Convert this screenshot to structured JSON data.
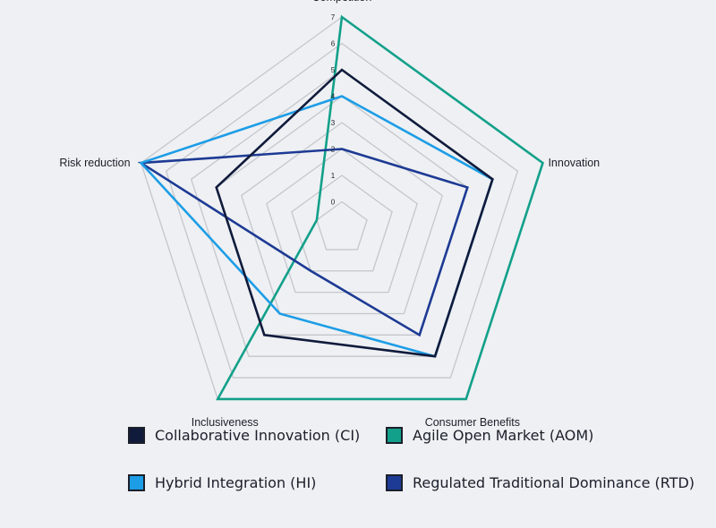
{
  "chart_data": {
    "type": "radar",
    "axes": [
      "Competition",
      "Innovation",
      "Consumer Benefits",
      "Inclusiveness",
      "Risk reduction"
    ],
    "ticks": [
      "0",
      "1",
      "2",
      "3",
      "4",
      "5",
      "6",
      "7"
    ],
    "range": [
      0,
      7
    ],
    "grid": true,
    "legend_position": "bottom",
    "series": [
      {
        "name": "Collaborative Innovation (CI)",
        "color": "#101b3c",
        "values": [
          5,
          5,
          5,
          4,
          4
        ]
      },
      {
        "name": "Agile Open Market (AOM)",
        "color": "#12a08a",
        "values": [
          7,
          7,
          7,
          7,
          0
        ]
      },
      {
        "name": "Hybrid Integration (HI)",
        "color": "#1d9de6",
        "values": [
          4,
          5,
          5,
          3,
          7
        ]
      },
      {
        "name": "Regulated Traditional Dominance (RTD)",
        "color": "#1d3a94",
        "values": [
          2,
          4,
          4,
          1,
          7
        ]
      }
    ]
  }
}
